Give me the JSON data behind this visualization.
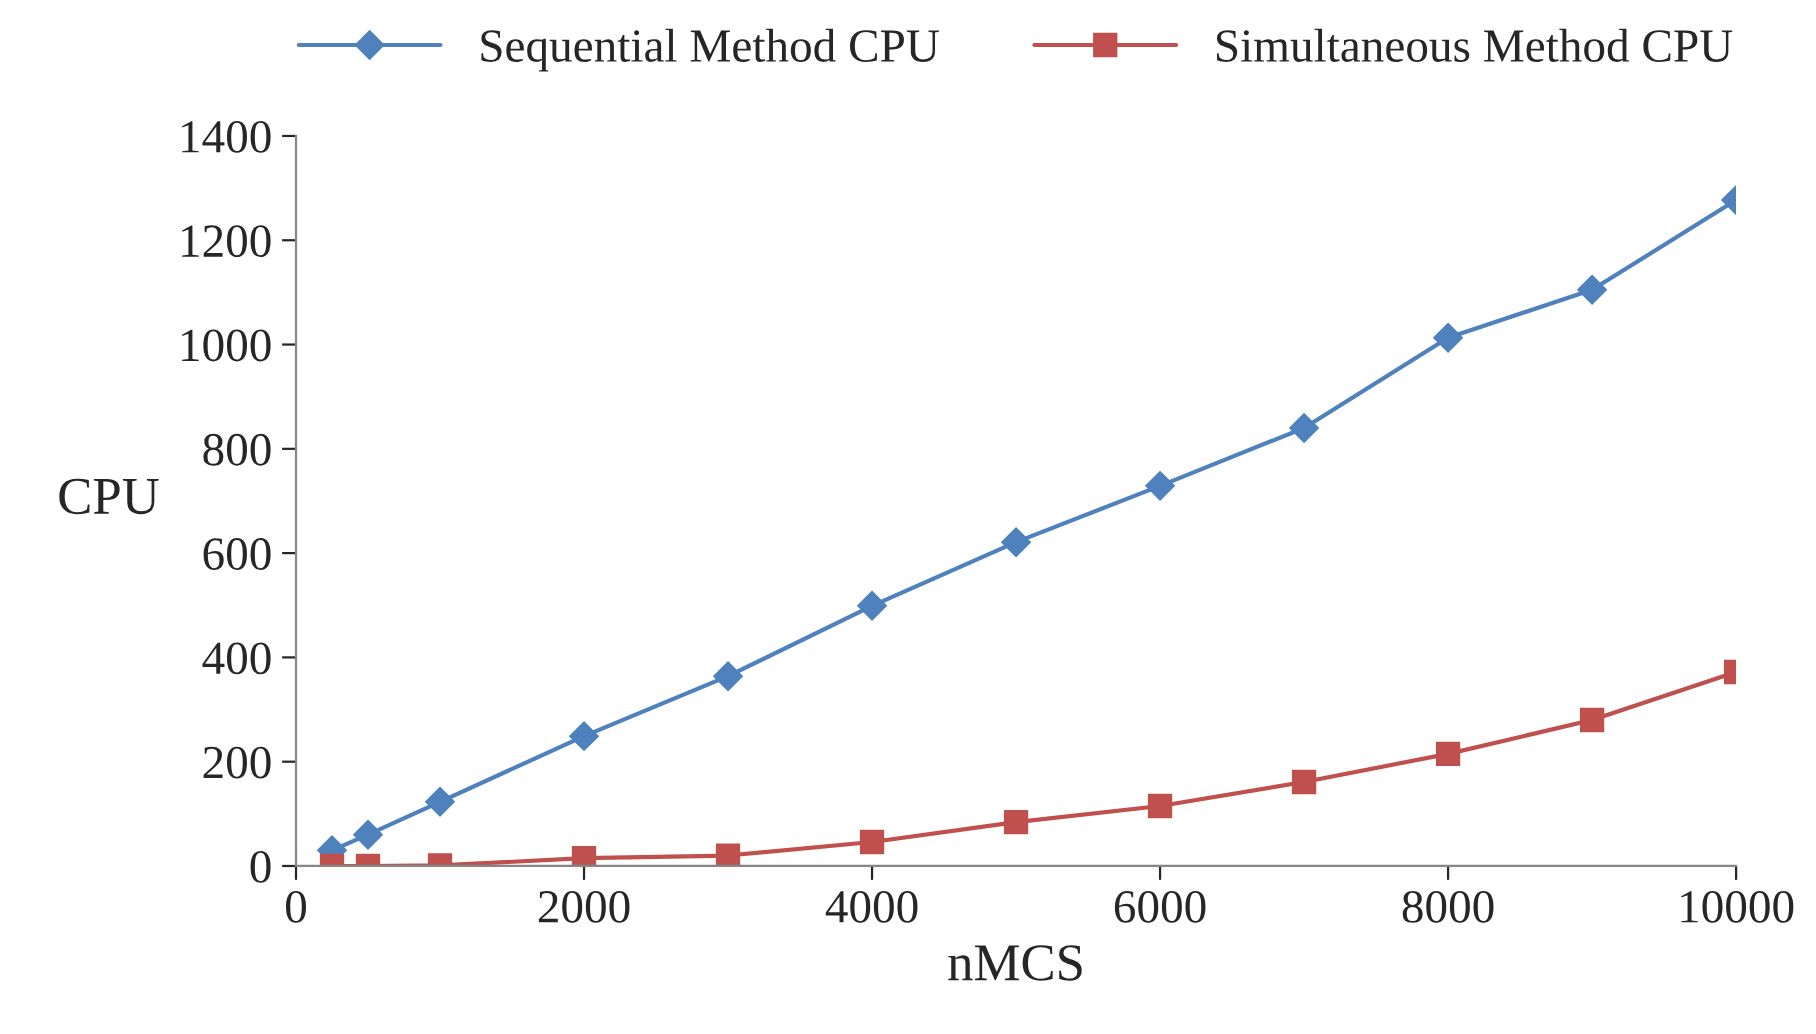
{
  "chart_data": {
    "type": "line",
    "xlabel": "nMCS",
    "ylabel": "CPU",
    "x": [
      250,
      500,
      1000,
      2000,
      3000,
      4000,
      5000,
      6000,
      7000,
      8000,
      9000,
      10000
    ],
    "series": [
      {
        "name": "Sequential Method CPU",
        "color": "#4f81bd",
        "marker": "diamond",
        "values": [
          30,
          60,
          123,
          249,
          364,
          499,
          621,
          729,
          840,
          1013,
          1105,
          1277
        ]
      },
      {
        "name": "Simultaneous Method CPU",
        "color": "#c0504d",
        "marker": "square",
        "values": [
          0,
          0,
          1,
          15,
          20,
          46,
          84,
          115,
          161,
          215,
          280,
          372
        ]
      }
    ],
    "xlim": [
      0,
      10000
    ],
    "xticks": [
      0,
      2000,
      4000,
      6000,
      8000,
      10000
    ],
    "ylim": [
      0,
      1400
    ],
    "yticks": [
      0,
      200,
      400,
      600,
      800,
      1000,
      1200,
      1400
    ],
    "grid": false,
    "legend": "top",
    "line_style": "solid"
  }
}
